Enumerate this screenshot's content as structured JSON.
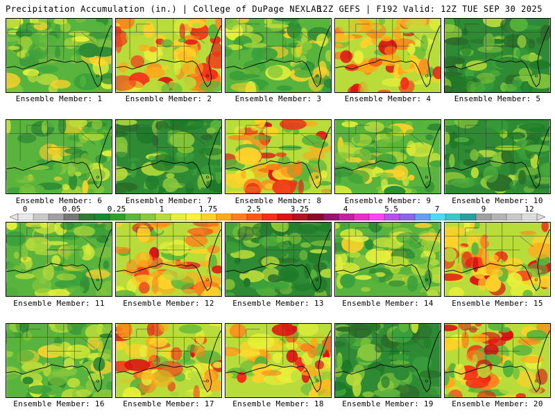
{
  "header": {
    "left_title": "Precipitation Accumulation (in.) | College of DuPage NEXLAB",
    "right_title": "12Z GEFS | F192 Valid: 12Z TUE SEP 30 2025"
  },
  "colorbar": {
    "labels": [
      "0",
      "0.05",
      "0.25",
      "1",
      "1.75",
      "2.5",
      "3.25",
      "4",
      "5.5",
      "7",
      "9",
      "12"
    ],
    "colors": [
      "#e8e8e8",
      "#c8c8c8",
      "#a0a0a0",
      "#787878",
      "#2e7d32",
      "#1b8a2e",
      "#33a02c",
      "#5db83a",
      "#8cc83c",
      "#b8dc3a",
      "#e6f03a",
      "#fff23a",
      "#ffd22a",
      "#ffaa1a",
      "#ff801a",
      "#ff5a14",
      "#f43018",
      "#dc1414",
      "#b4141e",
      "#8c0a28",
      "#a0106e",
      "#c81ea0",
      "#e632c8",
      "#ff46f0",
      "#b450f0",
      "#8c64f0",
      "#64a0f0",
      "#50dcf0",
      "#3cc8c8",
      "#28a0a0",
      "#a0a0a0",
      "#b4b4b4",
      "#c8c8c8",
      "#dcdcdc"
    ]
  },
  "members": [
    {
      "label": "Ensemble Member: 1",
      "style": "mixed"
    },
    {
      "label": "Ensemble Member: 2",
      "style": "wet"
    },
    {
      "label": "Ensemble Member: 3",
      "style": "mixed"
    },
    {
      "label": "Ensemble Member: 4",
      "style": "wet"
    },
    {
      "label": "Ensemble Member: 5",
      "style": "dry"
    },
    {
      "label": "Ensemble Member: 6",
      "style": "mixed"
    },
    {
      "label": "Ensemble Member: 7",
      "style": "dry"
    },
    {
      "label": "Ensemble Member: 8",
      "style": "wet"
    },
    {
      "label": "Ensemble Member: 9",
      "style": "mixed"
    },
    {
      "label": "Ensemble Member: 10",
      "style": "dry"
    },
    {
      "label": "Ensemble Member: 11",
      "style": "mixed"
    },
    {
      "label": "Ensemble Member: 12",
      "style": "wet"
    },
    {
      "label": "Ensemble Member: 13",
      "style": "dry"
    },
    {
      "label": "Ensemble Member: 14",
      "style": "mixed"
    },
    {
      "label": "Ensemble Member: 15",
      "style": "wet"
    },
    {
      "label": "Ensemble Member: 16",
      "style": "mixed"
    },
    {
      "label": "Ensemble Member: 17",
      "style": "wet"
    },
    {
      "label": "Ensemble Member: 18",
      "style": "wet"
    },
    {
      "label": "Ensemble Member: 19",
      "style": "dry"
    },
    {
      "label": "Ensemble Member: 20",
      "style": "wet"
    }
  ]
}
